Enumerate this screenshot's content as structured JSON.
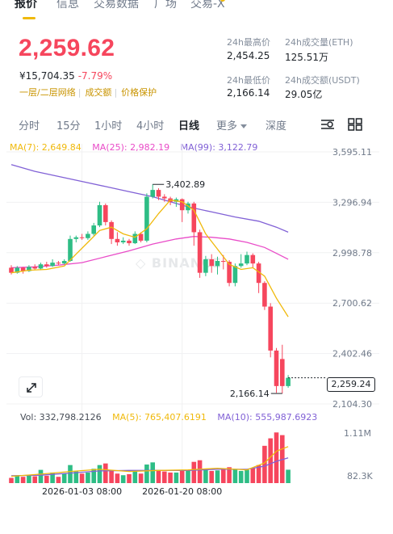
{
  "tabs": [
    {
      "label": "报价",
      "active": true
    },
    {
      "label": "信息",
      "active": false
    },
    {
      "label": "交易数据",
      "active": false
    },
    {
      "label": "广场",
      "active": false
    },
    {
      "label": "交易-X",
      "active": false
    }
  ],
  "price": {
    "last": "2,259.62",
    "fiat": "¥15,704.35",
    "change": "-7.79%",
    "tags": [
      "一层/二层网络",
      "成交额",
      "价格保护"
    ]
  },
  "stats": {
    "high_label": "24h最高价",
    "high_value": "2,454.25",
    "low_label": "24h最低价",
    "low_value": "2,166.14",
    "vol_eth_label": "24h成交量(ETH)",
    "vol_eth_value": "125.51万",
    "vol_usdt_label": "24h成交额(USDT)",
    "vol_usdt_value": "29.05亿"
  },
  "intervals": [
    "分时",
    "15分",
    "1小时",
    "4小时",
    "日线",
    "更多",
    "深度"
  ],
  "active_interval": "日线",
  "ma": {
    "ma7": "MA(7): 2,649.84",
    "ma25": "MA(25): 2,982.19",
    "ma99": "MA(99): 3,122.79"
  },
  "vol_legend": {
    "vol": "Vol: 332,798.2126",
    "ma5": "MA(5): 765,407.6191",
    "ma10": "MA(10): 555,987.6923"
  },
  "colors": {
    "up": "#2ebd85",
    "down": "#f6465d",
    "ma7": "#f0b90b",
    "ma25": "#e94cc8",
    "ma99": "#8161d6",
    "accent": "#f0b90b"
  },
  "icons": [
    "expand-icon",
    "indicator-settings-icon",
    "grid-layout-icon",
    "caret-down-icon"
  ],
  "watermark": "BINANCE",
  "chart_data": {
    "type": "candlestick",
    "y_ticks": [
      "3,595.11",
      "3,296.94",
      "2,998.78",
      "2,700.62",
      "2,402.46",
      "2,104.30"
    ],
    "y_range": [
      2104.3,
      3595.11
    ],
    "x_ticks": [
      {
        "label": "2026-01-03 08:00",
        "index": 12
      },
      {
        "label": "2026-01-20 08:00",
        "index": 29
      }
    ],
    "high_label": "3,402.89",
    "low_label": "2,166.14",
    "current_price_label": "2,259.24",
    "current_price": 2259.24,
    "candles": [
      {
        "o": 2910,
        "c": 2880,
        "h": 2925,
        "l": 2870
      },
      {
        "o": 2880,
        "c": 2910,
        "h": 2920,
        "l": 2875
      },
      {
        "o": 2910,
        "c": 2890,
        "h": 2915,
        "l": 2875
      },
      {
        "o": 2890,
        "c": 2915,
        "h": 2925,
        "l": 2885
      },
      {
        "o": 2915,
        "c": 2905,
        "h": 2930,
        "l": 2895
      },
      {
        "o": 2905,
        "c": 2930,
        "h": 2940,
        "l": 2895
      },
      {
        "o": 2930,
        "c": 2920,
        "h": 2945,
        "l": 2910
      },
      {
        "o": 2920,
        "c": 2940,
        "h": 2960,
        "l": 2915
      },
      {
        "o": 2940,
        "c": 2935,
        "h": 2950,
        "l": 2925
      },
      {
        "o": 2935,
        "c": 2950,
        "h": 2960,
        "l": 2930
      },
      {
        "o": 2950,
        "c": 3080,
        "h": 3100,
        "l": 2945
      },
      {
        "o": 3080,
        "c": 3090,
        "h": 3100,
        "l": 3060
      },
      {
        "o": 3090,
        "c": 3085,
        "h": 3110,
        "l": 3075
      },
      {
        "o": 3085,
        "c": 3110,
        "h": 3125,
        "l": 3075
      },
      {
        "o": 3110,
        "c": 3160,
        "h": 3175,
        "l": 3100
      },
      {
        "o": 3160,
        "c": 3280,
        "h": 3300,
        "l": 3150
      },
      {
        "o": 3280,
        "c": 3180,
        "h": 3290,
        "l": 3160
      },
      {
        "o": 3180,
        "c": 3080,
        "h": 3190,
        "l": 3050
      },
      {
        "o": 3080,
        "c": 3060,
        "h": 3120,
        "l": 3040
      },
      {
        "o": 3060,
        "c": 3070,
        "h": 3090,
        "l": 3050
      },
      {
        "o": 3070,
        "c": 3055,
        "h": 3080,
        "l": 3040
      },
      {
        "o": 3055,
        "c": 3110,
        "h": 3125,
        "l": 3050
      },
      {
        "o": 3110,
        "c": 3070,
        "h": 3120,
        "l": 3060
      },
      {
        "o": 3070,
        "c": 3330,
        "h": 3350,
        "l": 3060
      },
      {
        "o": 3330,
        "c": 3370,
        "h": 3402.89,
        "l": 3320
      },
      {
        "o": 3370,
        "c": 3330,
        "h": 3380,
        "l": 3310
      },
      {
        "o": 3330,
        "c": 3320,
        "h": 3345,
        "l": 3300
      },
      {
        "o": 3320,
        "c": 3300,
        "h": 3330,
        "l": 3280
      },
      {
        "o": 3300,
        "c": 3315,
        "h": 3325,
        "l": 3270
      },
      {
        "o": 3315,
        "c": 3250,
        "h": 3320,
        "l": 3180
      },
      {
        "o": 3250,
        "c": 3290,
        "h": 3300,
        "l": 3230
      },
      {
        "o": 3290,
        "c": 3120,
        "h": 3300,
        "l": 3040
      },
      {
        "o": 3120,
        "c": 2880,
        "h": 3135,
        "l": 2850
      },
      {
        "o": 2880,
        "c": 2960,
        "h": 2980,
        "l": 2860
      },
      {
        "o": 2960,
        "c": 2920,
        "h": 2990,
        "l": 2880
      },
      {
        "o": 2920,
        "c": 2950,
        "h": 2975,
        "l": 2870
      },
      {
        "o": 2950,
        "c": 2945,
        "h": 2985,
        "l": 2900
      },
      {
        "o": 2945,
        "c": 2820,
        "h": 2955,
        "l": 2800
      },
      {
        "o": 2820,
        "c": 2920,
        "h": 2935,
        "l": 2800
      },
      {
        "o": 2920,
        "c": 2935,
        "h": 2990,
        "l": 2910
      },
      {
        "o": 2935,
        "c": 2985,
        "h": 3005,
        "l": 2925
      },
      {
        "o": 2985,
        "c": 2935,
        "h": 2995,
        "l": 2910
      },
      {
        "o": 2935,
        "c": 2820,
        "h": 2945,
        "l": 2760
      },
      {
        "o": 2820,
        "c": 2680,
        "h": 2830,
        "l": 2660
      },
      {
        "o": 2680,
        "c": 2420,
        "h": 2700,
        "l": 2380
      },
      {
        "o": 2420,
        "c": 2210,
        "h": 2435,
        "l": 2170
      },
      {
        "o": 2370,
        "c": 2210,
        "h": 2454.25,
        "l": 2166.14
      },
      {
        "o": 2210,
        "c": 2259,
        "h": 2275,
        "l": 2200
      }
    ],
    "ma7": [
      [
        0,
        2880
      ],
      [
        3,
        2895
      ],
      [
        6,
        2900
      ],
      [
        9,
        2920
      ],
      [
        11,
        2990
      ],
      [
        13,
        3060
      ],
      [
        15,
        3130
      ],
      [
        17,
        3150
      ],
      [
        19,
        3110
      ],
      [
        21,
        3090
      ],
      [
        23,
        3140
      ],
      [
        25,
        3230
      ],
      [
        27,
        3310
      ],
      [
        29,
        3300
      ],
      [
        31,
        3250
      ],
      [
        33,
        3110
      ],
      [
        35,
        3020
      ],
      [
        37,
        2930
      ],
      [
        39,
        2900
      ],
      [
        41,
        2910
      ],
      [
        43,
        2860
      ],
      [
        45,
        2730
      ],
      [
        47,
        2620
      ]
    ],
    "ma25": [
      [
        0,
        2910
      ],
      [
        4,
        2915
      ],
      [
        8,
        2925
      ],
      [
        12,
        2940
      ],
      [
        16,
        2975
      ],
      [
        20,
        3010
      ],
      [
        24,
        3050
      ],
      [
        28,
        3080
      ],
      [
        31,
        3095
      ],
      [
        34,
        3090
      ],
      [
        37,
        3080
      ],
      [
        40,
        3060
      ],
      [
        43,
        3030
      ],
      [
        45,
        2995
      ],
      [
        47,
        2960
      ]
    ],
    "ma99": [
      [
        0,
        3520
      ],
      [
        4,
        3480
      ],
      [
        8,
        3450
      ],
      [
        12,
        3420
      ],
      [
        16,
        3390
      ],
      [
        20,
        3360
      ],
      [
        24,
        3330
      ],
      [
        27,
        3300
      ],
      [
        30,
        3270
      ],
      [
        34,
        3240
      ],
      [
        38,
        3210
      ],
      [
        42,
        3185
      ],
      [
        45,
        3150
      ],
      [
        47,
        3120
      ]
    ],
    "volume": {
      "range": [
        82300,
        1110000
      ],
      "ticks": [
        "1.11M",
        "82.3K"
      ],
      "values": [
        180000,
        230000,
        200000,
        240000,
        210000,
        330000,
        220000,
        280000,
        200000,
        260000,
        420000,
        300000,
        260000,
        280000,
        350000,
        420000,
        450000,
        320000,
        260000,
        230000,
        250000,
        300000,
        260000,
        430000,
        470000,
        330000,
        300000,
        280000,
        280000,
        330000,
        320000,
        480000,
        510000,
        330000,
        310000,
        320000,
        360000,
        380000,
        340000,
        310000,
        330000,
        360000,
        420000,
        780000,
        920000,
        1030000,
        980000,
        332798
      ],
      "ma5": [
        [
          0,
          210000
        ],
        [
          5,
          250000
        ],
        [
          10,
          300000
        ],
        [
          15,
          340000
        ],
        [
          20,
          300000
        ],
        [
          25,
          320000
        ],
        [
          30,
          330000
        ],
        [
          35,
          360000
        ],
        [
          40,
          330000
        ],
        [
          43,
          460000
        ],
        [
          45,
          680000
        ],
        [
          47,
          765407
        ]
      ],
      "ma10": [
        [
          0,
          220000
        ],
        [
          5,
          230000
        ],
        [
          10,
          270000
        ],
        [
          15,
          310000
        ],
        [
          20,
          320000
        ],
        [
          25,
          320000
        ],
        [
          30,
          320000
        ],
        [
          35,
          340000
        ],
        [
          40,
          340000
        ],
        [
          43,
          400000
        ],
        [
          45,
          490000
        ],
        [
          47,
          555987
        ]
      ]
    }
  }
}
